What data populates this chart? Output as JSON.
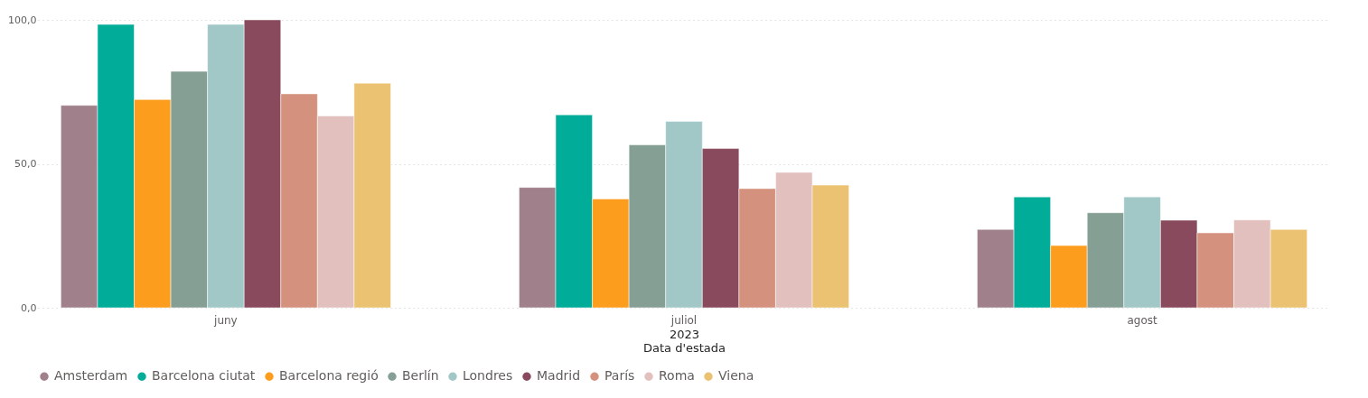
{
  "chart_data": {
    "type": "bar",
    "xlabel": "Data d'estada",
    "annotations": [
      "2023"
    ],
    "categories": [
      "juny",
      "juliol",
      "agost"
    ],
    "series": [
      {
        "name": "Amsterdam",
        "color": "#a0818b",
        "values": [
          70.3,
          41.8,
          27.2
        ]
      },
      {
        "name": "Barcelona ciutat",
        "color": "#01ac98",
        "values": [
          98.4,
          67.0,
          38.5
        ]
      },
      {
        "name": "Barcelona regió",
        "color": "#fd9d1d",
        "values": [
          72.3,
          37.8,
          21.6
        ]
      },
      {
        "name": "Berlín",
        "color": "#869f94",
        "values": [
          82.1,
          56.6,
          33.0
        ]
      },
      {
        "name": "Londres",
        "color": "#a1c7c7",
        "values": [
          98.4,
          64.7,
          38.5
        ]
      },
      {
        "name": "Madrid",
        "color": "#8a4a5d",
        "values": [
          100.0,
          55.3,
          30.4
        ]
      },
      {
        "name": "París",
        "color": "#d4917d",
        "values": [
          74.3,
          41.4,
          26.0
        ]
      },
      {
        "name": "Roma",
        "color": "#e2c0bd",
        "values": [
          66.6,
          47.0,
          30.5
        ]
      },
      {
        "name": "Viena",
        "color": "#ebc271",
        "values": [
          78.0,
          42.6,
          27.2
        ]
      }
    ],
    "ylim": [
      0,
      100
    ],
    "yticks": [
      {
        "value": 0,
        "label": "0,0"
      },
      {
        "value": 50,
        "label": "50,0"
      },
      {
        "value": 100,
        "label": "100,0"
      }
    ],
    "grid": "y",
    "legend": "bottom"
  }
}
